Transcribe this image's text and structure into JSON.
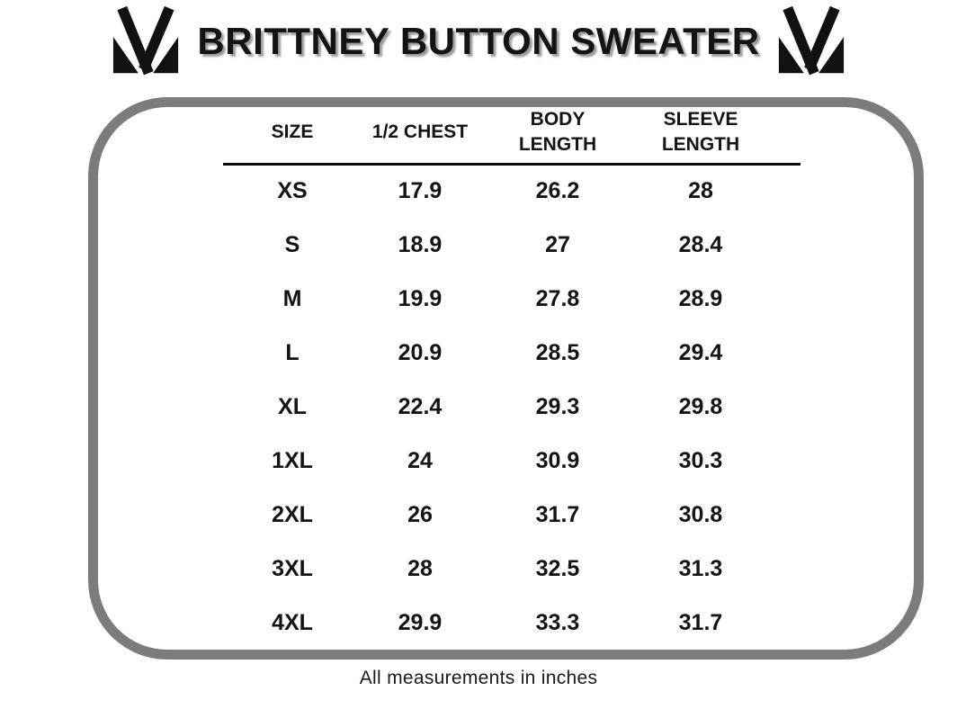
{
  "header": {
    "title": "BRITTNEY BUTTON SWEATER"
  },
  "footer": {
    "note": "All measurements in inches"
  },
  "colors": {
    "frame_border": "#7c7c7c",
    "text": "#141414",
    "title_shadow": "#9b9b9b",
    "divider": "#0b0b0b",
    "background": "#ffffff",
    "logo": "#111111"
  },
  "chart_data": {
    "type": "table",
    "title": "BRITTNEY BUTTON SWEATER",
    "columns": [
      "SIZE",
      "1/2 CHEST",
      "BODY LENGTH",
      "SLEEVE LENGTH"
    ],
    "rows": [
      [
        "XS",
        "17.9",
        "26.2",
        "28"
      ],
      [
        "S",
        "18.9",
        "27",
        "28.4"
      ],
      [
        "M",
        "19.9",
        "27.8",
        "28.9"
      ],
      [
        "L",
        "20.9",
        "28.5",
        "29.4"
      ],
      [
        "XL",
        "22.4",
        "29.3",
        "29.8"
      ],
      [
        "1XL",
        "24",
        "30.9",
        "30.3"
      ],
      [
        "2XL",
        "26",
        "31.7",
        "30.8"
      ],
      [
        "3XL",
        "28",
        "32.5",
        "31.3"
      ],
      [
        "4XL",
        "29.9",
        "33.3",
        "31.7"
      ]
    ],
    "units": "inches",
    "note": "All measurements in inches"
  }
}
